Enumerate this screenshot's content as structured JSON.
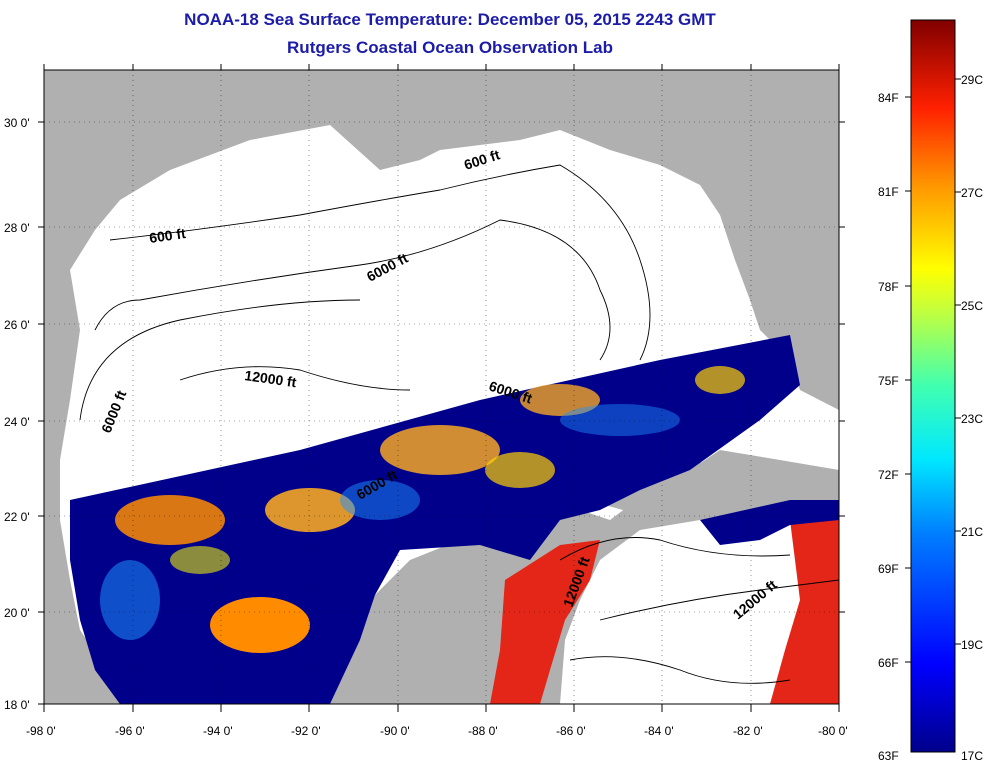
{
  "header": {
    "title": "NOAA-18 Sea Surface Temperature:  December 05, 2015 2243 GMT",
    "subtitle": "Rutgers Coastal Ocean Observation Lab"
  },
  "map": {
    "lat_labels": [
      "30 0'",
      "28 0'",
      "26 0'",
      "24 0'",
      "22 0'",
      "20 0'",
      "18 0'"
    ],
    "lon_labels": [
      "-98 0'",
      "-96 0'",
      "-94 0'",
      "-92 0'",
      "-90 0'",
      "-88 0'",
      "-86 0'",
      "-84 0'",
      "-82 0'",
      "-80 0'"
    ],
    "lat_range": [
      18,
      31
    ],
    "lon_range": [
      -98,
      -80
    ],
    "contour_labels": {
      "c600_north": "600 ft",
      "c600_west": "600 ft",
      "c6000_center": "6000 ft",
      "c6000_west": "6000 ft",
      "c12000_center": "12000 ft",
      "c6000_strait": "6000 ft",
      "c6000_mid": "6000 ft",
      "c12000_yucatan": "12000 ft",
      "c12000_caribbean": "12000 ft"
    },
    "colors": {
      "land": "#b0b0b0",
      "no_data": "#ffffff",
      "cold": "#00008b",
      "warm": "#ff8c00",
      "hot": "#e32617"
    }
  },
  "colorbar": {
    "f_labels": [
      "84F",
      "81F",
      "78F",
      "75F",
      "72F",
      "69F",
      "66F",
      "63F"
    ],
    "c_labels": [
      "29C",
      "27C",
      "25C",
      "23C",
      "21C",
      "19C",
      "17C"
    ]
  }
}
